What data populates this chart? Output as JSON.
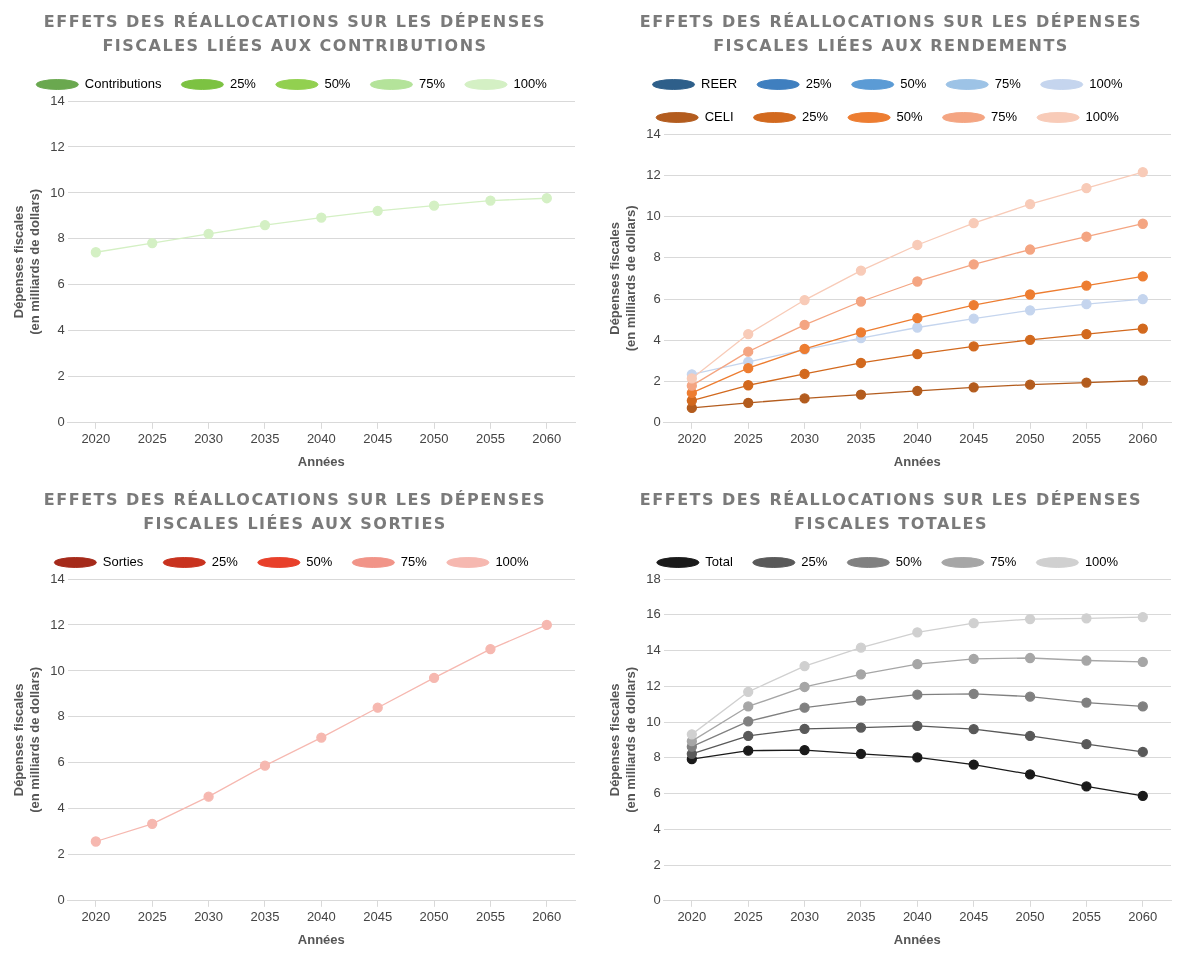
{
  "chart_data": [
    {
      "type": "line",
      "title": "EFFETS DES RÉALLOCATIONS SUR LES DÉPENSES FISCALES LIÉES AUX CONTRIBUTIONS",
      "xlabel": "Années",
      "ylabel": "Dépenses fiscales\n(en milliards de dollars)",
      "categories": [
        "2020",
        "2025",
        "2030",
        "2035",
        "2040",
        "2045",
        "2050",
        "2055",
        "2060"
      ],
      "ylim": [
        0,
        14
      ],
      "yticks": [
        0,
        2,
        4,
        6,
        8,
        10,
        12,
        14
      ],
      "grid": "y",
      "legend": "top",
      "marker": "circle",
      "series": [
        {
          "name": "Contributions",
          "color": "#6aa84f",
          "values": [
            null,
            null,
            null,
            null,
            null,
            null,
            null,
            null,
            null
          ]
        },
        {
          "name": "25%",
          "color": "#7cc242",
          "values": [
            null,
            null,
            null,
            null,
            null,
            null,
            null,
            null,
            null
          ]
        },
        {
          "name": "50%",
          "color": "#92d050",
          "values": [
            null,
            null,
            null,
            null,
            null,
            null,
            null,
            null,
            null
          ]
        },
        {
          "name": "75%",
          "color": "#b4e39a",
          "values": [
            null,
            null,
            null,
            null,
            null,
            null,
            null,
            null,
            null
          ]
        },
        {
          "name": "100%",
          "color": "#d4f0c4",
          "values": [
            7.42,
            7.82,
            8.22,
            8.6,
            8.93,
            9.22,
            9.45,
            9.67,
            9.77
          ]
        }
      ]
    },
    {
      "type": "line",
      "title": "EFFETS DES RÉALLOCATIONS SUR LES DÉPENSES FISCALES LIÉES AUX RENDEMENTS",
      "xlabel": "Années",
      "ylabel": "Dépenses fiscales\n(en milliards de dollars)",
      "categories": [
        "2020",
        "2025",
        "2030",
        "2035",
        "2040",
        "2045",
        "2050",
        "2055",
        "2060"
      ],
      "ylim": [
        0,
        14
      ],
      "yticks": [
        0,
        2,
        4,
        6,
        8,
        10,
        12,
        14
      ],
      "grid": "y",
      "legend": "top",
      "marker": "circle",
      "series": [
        {
          "name": "REER",
          "color": "#2e5f8a",
          "values": [
            null,
            null,
            null,
            null,
            null,
            null,
            null,
            null,
            null
          ]
        },
        {
          "name": "25%",
          "color": "#3f7fbf",
          "values": [
            null,
            null,
            null,
            null,
            null,
            null,
            null,
            null,
            null
          ]
        },
        {
          "name": "50%",
          "color": "#5b9bd5",
          "values": [
            null,
            null,
            null,
            null,
            null,
            null,
            null,
            null,
            null
          ]
        },
        {
          "name": "75%",
          "color": "#9dc3e6",
          "values": [
            null,
            null,
            null,
            null,
            null,
            null,
            null,
            null,
            null
          ]
        },
        {
          "name": "100%",
          "color": "#c5d5ee",
          "values": [
            2.35,
            2.95,
            3.55,
            4.1,
            4.62,
            5.05,
            5.45,
            5.75,
            6.0
          ]
        },
        {
          "name": "CELI",
          "color": "#b35c1e",
          "values": [
            0.72,
            0.97,
            1.18,
            1.37,
            1.55,
            1.72,
            1.85,
            1.95,
            2.05
          ]
        },
        {
          "name": "25%",
          "color": "#d2691e",
          "values": [
            1.08,
            1.82,
            2.37,
            2.9,
            3.33,
            3.7,
            4.02,
            4.3,
            4.57
          ]
        },
        {
          "name": "50%",
          "color": "#ed7d31",
          "values": [
            1.45,
            2.65,
            3.58,
            4.38,
            5.07,
            5.7,
            6.22,
            6.65,
            7.1
          ]
        },
        {
          "name": "75%",
          "color": "#f4a582",
          "values": [
            1.8,
            3.45,
            4.75,
            5.88,
            6.85,
            7.68,
            8.4,
            9.02,
            9.65
          ]
        },
        {
          "name": "100%",
          "color": "#f8cbb8",
          "values": [
            2.15,
            4.3,
            5.95,
            7.38,
            8.62,
            9.68,
            10.6,
            11.38,
            12.15
          ]
        }
      ]
    },
    {
      "type": "line",
      "title": "EFFETS DES RÉALLOCATIONS SUR LES DÉPENSES FISCALES LIÉES AUX SORTIES",
      "xlabel": "Années",
      "ylabel": "Dépenses fiscales\n(en milliards de dollars)",
      "categories": [
        "2020",
        "2025",
        "2030",
        "2035",
        "2040",
        "2045",
        "2050",
        "2055",
        "2060"
      ],
      "ylim": [
        0,
        14
      ],
      "yticks": [
        0,
        2,
        4,
        6,
        8,
        10,
        12,
        14
      ],
      "grid": "y",
      "legend": "top",
      "marker": "circle",
      "series": [
        {
          "name": "Sorties",
          "color": "#a52a1a",
          "values": [
            null,
            null,
            null,
            null,
            null,
            null,
            null,
            null,
            null
          ]
        },
        {
          "name": "25%",
          "color": "#c8321e",
          "values": [
            null,
            null,
            null,
            null,
            null,
            null,
            null,
            null,
            null
          ]
        },
        {
          "name": "50%",
          "color": "#e8402a",
          "values": [
            null,
            null,
            null,
            null,
            null,
            null,
            null,
            null,
            null
          ]
        },
        {
          "name": "75%",
          "color": "#f19488",
          "values": [
            null,
            null,
            null,
            null,
            null,
            null,
            null,
            null,
            null
          ]
        },
        {
          "name": "100%",
          "color": "#f6b8b0",
          "values": [
            2.58,
            3.35,
            4.53,
            5.88,
            7.1,
            8.4,
            9.7,
            10.95,
            12.0
          ]
        }
      ]
    },
    {
      "type": "line",
      "title": "EFFETS DES RÉALLOCATIONS SUR LES DÉPENSES FISCALES TOTALES",
      "xlabel": "Années",
      "ylabel": "Dépenses fiscales\n(en milliards de dollars)",
      "categories": [
        "2020",
        "2025",
        "2030",
        "2035",
        "2040",
        "2045",
        "2050",
        "2055",
        "2060"
      ],
      "ylim": [
        0,
        18
      ],
      "yticks": [
        0,
        2,
        4,
        6,
        8,
        10,
        12,
        14,
        16,
        18
      ],
      "grid": "y",
      "legend": "top",
      "marker": "circle",
      "series": [
        {
          "name": "Total",
          "color": "#1a1a1a",
          "values": [
            7.92,
            8.4,
            8.43,
            8.22,
            8.02,
            7.62,
            7.07,
            6.4,
            5.87
          ]
        },
        {
          "name": "25%",
          "color": "#595959",
          "values": [
            8.22,
            9.22,
            9.62,
            9.69,
            9.78,
            9.6,
            9.22,
            8.76,
            8.33
          ]
        },
        {
          "name": "50%",
          "color": "#808080",
          "values": [
            8.62,
            10.04,
            10.8,
            11.2,
            11.53,
            11.58,
            11.42,
            11.09,
            10.87
          ]
        },
        {
          "name": "75%",
          "color": "#a6a6a6",
          "values": [
            8.93,
            10.87,
            11.96,
            12.67,
            13.24,
            13.53,
            13.58,
            13.44,
            13.36
          ]
        },
        {
          "name": "100%",
          "color": "#d0d0d0",
          "values": [
            9.31,
            11.69,
            13.13,
            14.16,
            15.02,
            15.53,
            15.76,
            15.8,
            15.87
          ]
        }
      ]
    }
  ]
}
